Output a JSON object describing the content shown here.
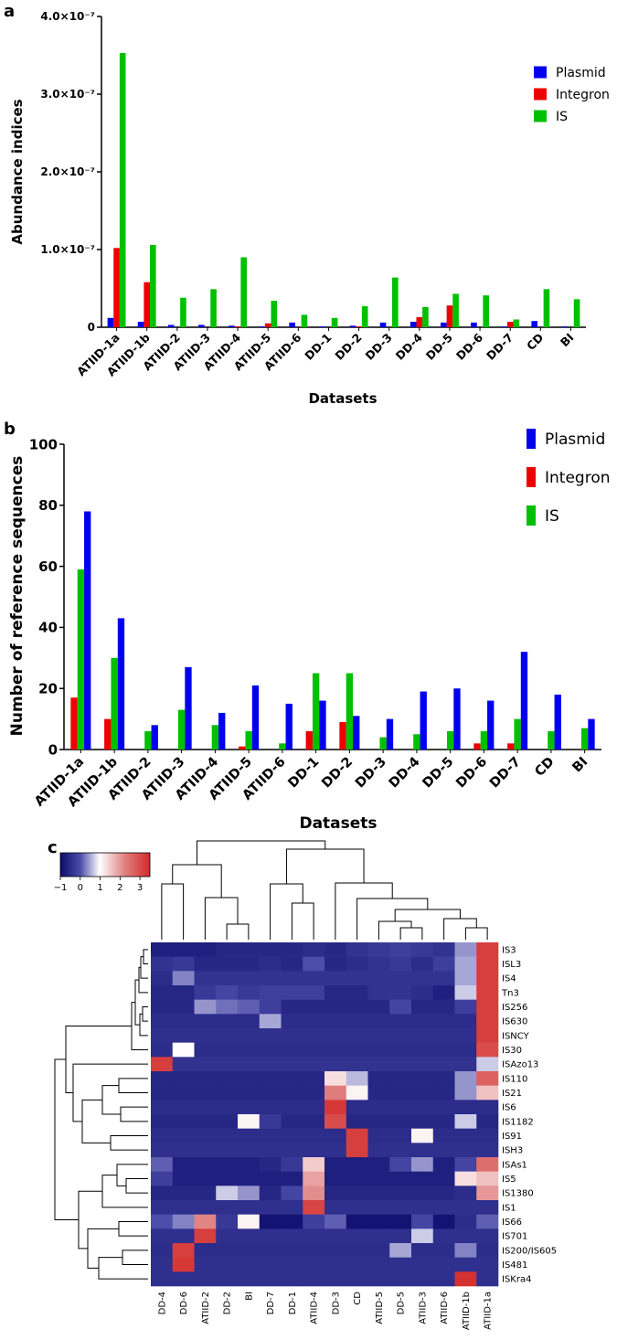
{
  "panel_labels": {
    "a": "a",
    "b": "b",
    "c": "c"
  },
  "colors": {
    "plasmid": "#0000ee",
    "integron": "#ee0000",
    "is": "#00c000",
    "heat_low": "#0d0d6e",
    "heat_mid": "#ffffff",
    "heat_high": "#d42a2a"
  },
  "chart_data": [
    {
      "type": "bar",
      "title": "",
      "xlabel": "Datasets",
      "ylabel": "Abundance indices",
      "ylim": [
        0,
        4e-07
      ],
      "yticks": [
        {
          "value": 0,
          "label": "0"
        },
        {
          "value": 1e-07,
          "label": "1.0×10⁻⁷"
        },
        {
          "value": 2e-07,
          "label": "2.0×10⁻⁷"
        },
        {
          "value": 3e-07,
          "label": "3.0×10⁻⁷"
        },
        {
          "value": 4e-07,
          "label": "4.0×10⁻⁷"
        }
      ],
      "categories": [
        "ATIID-1a",
        "ATIID-1b",
        "ATIID-2",
        "ATIID-3",
        "ATIID-4",
        "ATIID-5",
        "ATIID-6",
        "DD-1",
        "DD-2",
        "DD-3",
        "DD-4",
        "DD-5",
        "DD-6",
        "DD-7",
        "CD",
        "BI"
      ],
      "series": [
        {
          "name": "Plasmid",
          "color": "#0000ee",
          "values": [
            1.2e-08,
            7e-09,
            3e-09,
            3e-09,
            2e-09,
            1e-09,
            6e-09,
            1e-09,
            2e-09,
            6e-09,
            7e-09,
            6e-09,
            6e-09,
            1e-09,
            8e-09,
            1e-09
          ]
        },
        {
          "name": "Integron",
          "color": "#ee0000",
          "values": [
            1.02e-07,
            5.8e-08,
            0,
            0,
            1e-09,
            5e-09,
            0,
            0,
            1e-09,
            0,
            1.3e-08,
            2.8e-08,
            0,
            7e-09,
            0,
            0
          ]
        },
        {
          "name": "IS",
          "color": "#00c000",
          "values": [
            3.53e-07,
            1.06e-07,
            3.8e-08,
            4.9e-08,
            9e-08,
            3.4e-08,
            1.6e-08,
            1.2e-08,
            2.7e-08,
            6.4e-08,
            2.6e-08,
            4.3e-08,
            4.1e-08,
            1e-08,
            4.9e-08,
            3.6e-08
          ]
        }
      ],
      "legend": {
        "position": "top-right",
        "entries": [
          "Plasmid",
          "Integron",
          "IS"
        ]
      }
    },
    {
      "type": "bar",
      "title": "",
      "xlabel": "Datasets",
      "ylabel": "Number of reference sequences",
      "ylim": [
        0,
        100
      ],
      "yticks": [
        {
          "value": 0,
          "label": "0"
        },
        {
          "value": 20,
          "label": "20"
        },
        {
          "value": 40,
          "label": "40"
        },
        {
          "value": 60,
          "label": "60"
        },
        {
          "value": 80,
          "label": "80"
        },
        {
          "value": 100,
          "label": "100"
        }
      ],
      "categories": [
        "ATIID-1a",
        "ATIID-1b",
        "ATIID-2",
        "ATIID-3",
        "ATIID-4",
        "ATIID-5",
        "ATIID-6",
        "DD-1",
        "DD-2",
        "DD-3",
        "DD-4",
        "DD-5",
        "DD-6",
        "DD-7",
        "CD",
        "BI"
      ],
      "series": [
        {
          "name": "Integron",
          "color": "#ee0000",
          "values": [
            17,
            10,
            0,
            0,
            0,
            1,
            0,
            6,
            9,
            0,
            0,
            0,
            2,
            2,
            0,
            0
          ]
        },
        {
          "name": "IS",
          "color": "#00c000",
          "values": [
            59,
            30,
            6,
            13,
            8,
            6,
            2,
            25,
            25,
            4,
            5,
            6,
            6,
            10,
            6,
            7
          ]
        },
        {
          "name": "Plasmid",
          "color": "#0000ee",
          "values": [
            78,
            43,
            8,
            27,
            12,
            21,
            15,
            16,
            11,
            10,
            19,
            20,
            16,
            32,
            18,
            10
          ]
        }
      ],
      "legend": {
        "position": "top-right",
        "entries": [
          "Plasmid",
          "Integron",
          "IS"
        ]
      }
    },
    {
      "type": "heatmap",
      "title": "",
      "columns": [
        "DD-4",
        "DD-6",
        "ATIID-2",
        "DD-2",
        "BI",
        "DD-7",
        "DD-1",
        "ATIID-4",
        "DD-3",
        "CD",
        "ATIID-5",
        "DD-5",
        "ATIID-3",
        "ATIID-6",
        "ATIID-1b",
        "ATIID-1a"
      ],
      "rows": [
        "IS3",
        "ISL3",
        "IS4",
        "Tn3",
        "IS256",
        "IS630",
        "ISNCY",
        "IS30",
        "ISAzo13",
        "IS110",
        "IS21",
        "IS6",
        "IS1182",
        "IS91",
        "ISH3",
        "ISAs1",
        "IS5",
        "IS1380",
        "IS1",
        "IS66",
        "IS701",
        "IS200/IS605",
        "IS481",
        "ISKra4"
      ],
      "color_scale": {
        "min": -1,
        "max": 3.5,
        "ticks": [
          -1,
          0,
          1,
          2,
          3
        ],
        "tick_labels": [
          "−1",
          "0",
          "1",
          "2",
          "3"
        ]
      },
      "values": [
        [
          -0.7,
          -0.7,
          -0.7,
          -0.6,
          -0.6,
          -0.6,
          -0.6,
          -0.5,
          -0.6,
          -0.4,
          -0.3,
          -0.2,
          -0.3,
          -0.4,
          0.4,
          3.2
        ],
        [
          -0.4,
          -0.3,
          -0.6,
          -0.6,
          -0.6,
          -0.5,
          -0.6,
          0.0,
          -0.6,
          -0.5,
          -0.4,
          -0.3,
          -0.5,
          -0.2,
          0.5,
          3.2
        ],
        [
          -0.5,
          0.3,
          -0.4,
          -0.4,
          -0.4,
          -0.4,
          -0.4,
          -0.4,
          -0.4,
          -0.4,
          -0.4,
          -0.4,
          -0.4,
          -0.4,
          0.5,
          3.2
        ],
        [
          -0.6,
          -0.6,
          -0.3,
          -0.1,
          -0.3,
          -0.2,
          -0.2,
          -0.2,
          -0.6,
          -0.6,
          -0.4,
          -0.4,
          -0.5,
          -0.7,
          0.7,
          3.2
        ],
        [
          -0.6,
          -0.6,
          0.4,
          0.2,
          0.1,
          -0.2,
          -0.6,
          -0.6,
          -0.6,
          -0.6,
          -0.6,
          -0.1,
          -0.6,
          -0.6,
          -0.2,
          3.2
        ],
        [
          -0.5,
          -0.5,
          -0.5,
          -0.5,
          -0.5,
          0.5,
          -0.5,
          -0.5,
          -0.5,
          -0.5,
          -0.5,
          -0.5,
          -0.5,
          -0.5,
          -0.5,
          3.2
        ],
        [
          -0.45,
          -0.45,
          -0.45,
          -0.45,
          -0.45,
          -0.45,
          -0.45,
          -0.45,
          -0.45,
          -0.45,
          -0.45,
          -0.45,
          -0.45,
          -0.45,
          -0.45,
          3.2
        ],
        [
          -0.5,
          1.0,
          -0.5,
          -0.5,
          -0.5,
          -0.5,
          -0.5,
          -0.5,
          -0.5,
          -0.5,
          -0.5,
          -0.5,
          -0.5,
          -0.5,
          -0.5,
          3.0
        ],
        [
          3.2,
          -0.4,
          -0.4,
          -0.4,
          -0.4,
          -0.4,
          -0.4,
          -0.4,
          -0.4,
          -0.4,
          -0.4,
          -0.4,
          -0.4,
          -0.4,
          -0.4,
          0.7
        ],
        [
          -0.6,
          -0.6,
          -0.6,
          -0.6,
          -0.6,
          -0.6,
          -0.6,
          -0.6,
          1.3,
          0.6,
          -0.6,
          -0.6,
          -0.6,
          -0.6,
          0.4,
          2.7
        ],
        [
          -0.6,
          -0.6,
          -0.6,
          -0.6,
          -0.6,
          -0.6,
          -0.6,
          -0.6,
          2.3,
          1.1,
          -0.6,
          -0.6,
          -0.6,
          -0.6,
          0.4,
          1.6
        ],
        [
          -0.5,
          -0.5,
          -0.5,
          -0.5,
          -0.5,
          -0.5,
          -0.5,
          -0.5,
          3.3,
          -0.5,
          -0.5,
          -0.5,
          -0.5,
          -0.5,
          -0.5,
          -0.5
        ],
        [
          -0.6,
          -0.6,
          -0.6,
          -0.6,
          1.1,
          -0.3,
          -0.6,
          -0.6,
          3.0,
          -0.6,
          -0.6,
          -0.6,
          -0.6,
          -0.6,
          0.7,
          -0.6
        ],
        [
          -0.5,
          -0.5,
          -0.5,
          -0.5,
          -0.5,
          -0.5,
          -0.5,
          -0.5,
          -0.5,
          3.2,
          -0.5,
          -0.5,
          1.1,
          -0.5,
          -0.5,
          -0.5
        ],
        [
          -0.45,
          -0.45,
          -0.45,
          -0.45,
          -0.45,
          -0.45,
          -0.45,
          -0.45,
          -0.45,
          3.2,
          -0.45,
          -0.45,
          -0.45,
          -0.45,
          -0.45,
          -0.45
        ],
        [
          0.1,
          -0.7,
          -0.7,
          -0.7,
          -0.7,
          -0.6,
          -0.3,
          1.5,
          -0.7,
          -0.7,
          -0.7,
          -0.1,
          0.4,
          -0.7,
          -0.1,
          2.5
        ],
        [
          -0.2,
          -0.7,
          -0.7,
          -0.7,
          -0.7,
          -0.7,
          -0.7,
          1.9,
          -0.7,
          -0.7,
          -0.7,
          -0.7,
          -0.7,
          -0.7,
          1.3,
          1.6
        ],
        [
          -0.6,
          -0.6,
          -0.6,
          0.7,
          0.4,
          -0.6,
          -0.1,
          2.1,
          -0.6,
          -0.6,
          -0.6,
          -0.6,
          -0.6,
          -0.6,
          -0.5,
          2.0
        ],
        [
          -0.45,
          -0.45,
          -0.45,
          -0.45,
          -0.45,
          -0.45,
          -0.45,
          3.1,
          -0.45,
          -0.45,
          -0.45,
          -0.45,
          -0.45,
          -0.45,
          -0.45,
          -0.45
        ],
        [
          0.0,
          0.3,
          2.2,
          -0.3,
          1.1,
          -0.9,
          -0.9,
          -0.2,
          0.1,
          -0.9,
          -0.9,
          -0.9,
          -0.1,
          -0.9,
          -0.5,
          0.1
        ],
        [
          -0.45,
          -0.45,
          3.2,
          -0.45,
          -0.45,
          -0.45,
          -0.45,
          -0.45,
          -0.45,
          -0.45,
          -0.45,
          -0.45,
          0.7,
          -0.45,
          -0.45,
          -0.45
        ],
        [
          -0.5,
          3.2,
          -0.5,
          -0.5,
          -0.5,
          -0.5,
          -0.5,
          -0.5,
          -0.5,
          -0.5,
          -0.5,
          0.5,
          -0.5,
          -0.5,
          0.3,
          -0.5
        ],
        [
          -0.45,
          3.3,
          -0.45,
          -0.45,
          -0.45,
          -0.45,
          -0.45,
          -0.45,
          -0.45,
          -0.45,
          -0.45,
          -0.45,
          -0.45,
          -0.45,
          -0.45,
          -0.45
        ],
        [
          -0.45,
          -0.45,
          -0.45,
          -0.45,
          -0.45,
          -0.45,
          -0.45,
          -0.45,
          -0.45,
          -0.45,
          -0.45,
          -0.45,
          -0.45,
          -0.45,
          3.4,
          -0.45
        ]
      ]
    }
  ]
}
